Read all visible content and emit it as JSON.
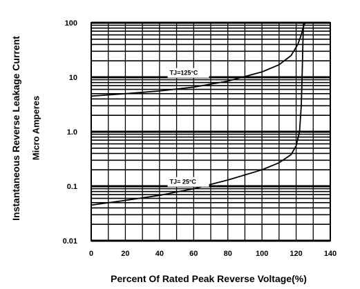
{
  "chart_data": {
    "type": "line",
    "title": "",
    "xlabel": "Percent Of Rated Peak Reverse Voltage(%)",
    "ylabel": [
      "Instantaneous Reverse Leakage Current",
      "Micro Amperes"
    ],
    "xlim": [
      0,
      140
    ],
    "ylim": [
      0.01,
      100
    ],
    "y_scale": "log",
    "grid": true,
    "x_ticks": [
      "0",
      "20",
      "40",
      "60",
      "80",
      "100",
      "120",
      "140"
    ],
    "y_ticks": [
      "100",
      "10",
      "1.0",
      "0.1",
      "0.01"
    ],
    "series": [
      {
        "name": "TJ=125°C",
        "x": [
          0,
          20,
          40,
          60,
          80,
          100,
          110,
          117,
          121,
          123,
          124,
          125,
          125.3
        ],
        "y": [
          4.5,
          5.0,
          5.6,
          6.6,
          8.5,
          12.5,
          17,
          25,
          40,
          60,
          80,
          95,
          100
        ]
      },
      {
        "name": "TJ=25°C",
        "x": [
          0,
          20,
          40,
          60,
          80,
          100,
          110,
          117,
          120,
          122,
          123,
          123.5,
          124,
          124.3
        ],
        "y": [
          0.045,
          0.055,
          0.068,
          0.09,
          0.13,
          0.2,
          0.27,
          0.38,
          0.55,
          1.0,
          3.0,
          10,
          50,
          100
        ]
      }
    ],
    "annotations": [
      {
        "text": "TJ=125°C",
        "x": 50,
        "y": 12
      },
      {
        "text": "TJ= 25°C",
        "x": 50,
        "y": 0.12
      }
    ]
  }
}
